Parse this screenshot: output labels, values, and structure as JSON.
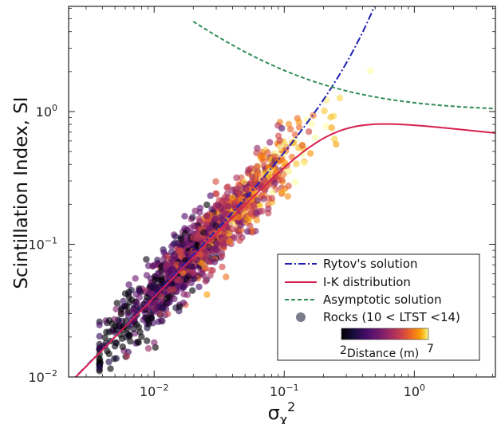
{
  "chart_data": {
    "type": "scatter",
    "xlabel": "σ",
    "xlabel_sub": "χ",
    "xlabel_sup": "2",
    "ylabel": "Scintillation Index, SI",
    "xscale": "log",
    "yscale": "log",
    "xlim": [
      0.0022,
      4.2
    ],
    "ylim": [
      0.01,
      6.2
    ],
    "x_ticks": [
      {
        "value": 0.01,
        "base": "10",
        "exp": "−2"
      },
      {
        "value": 0.1,
        "base": "10",
        "exp": "−1"
      },
      {
        "value": 1,
        "base": "10",
        "exp": "0"
      }
    ],
    "y_ticks": [
      {
        "value": 0.01,
        "base": "10",
        "exp": "−2"
      },
      {
        "value": 0.1,
        "base": "10",
        "exp": "−1"
      },
      {
        "value": 1,
        "base": "10",
        "exp": "0"
      }
    ],
    "grid": false,
    "legend_position": "bottom-right",
    "series": [
      {
        "name": "Rytov's solution",
        "kind": "line",
        "style": "dashdot",
        "color": "#1f1fb4"
      },
      {
        "name": "I-K distribution",
        "kind": "line",
        "style": "solid",
        "color": "#d6204f"
      },
      {
        "name": "Asymptotic solution",
        "kind": "line",
        "style": "dashed",
        "color": "#2e8b57"
      },
      {
        "name": "Rocks (10 < LTST <14)",
        "kind": "scatter",
        "color": "#7b7b8c"
      }
    ],
    "colorbar": {
      "label": "Distance (m)",
      "min_label": "2",
      "max_label": "7",
      "colormap": "inferno",
      "min": 2,
      "max": 7
    },
    "scatter_summary": {
      "x_range": [
        0.0035,
        0.6
      ],
      "y_range": [
        0.012,
        2.3
      ],
      "relation": "SI ≈ 4·σχ² scaling with colour (distance) increasing with σχ²"
    }
  }
}
